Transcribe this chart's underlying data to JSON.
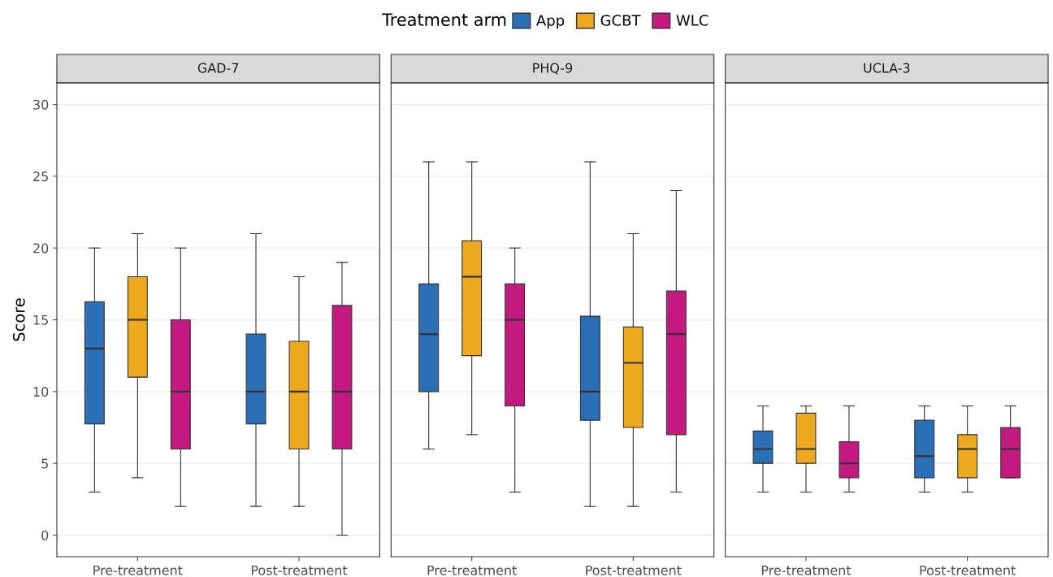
{
  "chart_data": [
    {
      "type": "box",
      "title": "GAD-7",
      "ylabel": "Score",
      "legend_title": "Treatment arm",
      "legend": "top",
      "grid": "y",
      "categories": [
        "Pre-treatment",
        "Post-treatment"
      ],
      "ylim": [
        -1.5,
        31.5
      ],
      "yticks": [
        0,
        5,
        10,
        15,
        20,
        25,
        30
      ],
      "series": [
        {
          "name": "App",
          "color": "#2b6fb6",
          "boxes": [
            {
              "low": 3,
              "q1": 7.75,
              "median": 13,
              "q3": 16.25,
              "high": 20
            },
            {
              "low": 2,
              "q1": 7.75,
              "median": 10,
              "q3": 14,
              "high": 21
            }
          ]
        },
        {
          "name": "GCBT",
          "color": "#eeaa1f",
          "boxes": [
            {
              "low": 4,
              "q1": 11,
              "median": 15,
              "q3": 18,
              "high": 21
            },
            {
              "low": 2,
              "q1": 6,
              "median": 10,
              "q3": 13.5,
              "high": 18
            }
          ]
        },
        {
          "name": "WLC",
          "color": "#c41a80",
          "boxes": [
            {
              "low": 2,
              "q1": 6,
              "median": 10,
              "q3": 15,
              "high": 20
            },
            {
              "low": 0,
              "q1": 6,
              "median": 10,
              "q3": 16,
              "high": 19
            }
          ]
        }
      ]
    },
    {
      "type": "box",
      "title": "PHQ-9",
      "grid": "y",
      "tick_labels": "x",
      "categories": [
        "Pre-treatment",
        "Post-treatment"
      ],
      "ylim": [
        -1.5,
        31.5
      ],
      "series": [
        {
          "name": "App",
          "color": "#2b6fb6",
          "boxes": [
            {
              "low": 6,
              "q1": 10,
              "median": 14,
              "q3": 17.5,
              "high": 26
            },
            {
              "low": 2,
              "q1": 8,
              "median": 10,
              "q3": 15.25,
              "high": 26
            }
          ]
        },
        {
          "name": "GCBT",
          "color": "#eeaa1f",
          "boxes": [
            {
              "low": 7,
              "q1": 12.5,
              "median": 18,
              "q3": 20.5,
              "high": 26
            },
            {
              "low": 2,
              "q1": 7.5,
              "median": 12,
              "q3": 14.5,
              "high": 21
            }
          ]
        },
        {
          "name": "WLC",
          "color": "#c41a80",
          "boxes": [
            {
              "low": 3,
              "q1": 9,
              "median": 15,
              "q3": 17.5,
              "high": 20
            },
            {
              "low": 3,
              "q1": 7,
              "median": 14,
              "q3": 17,
              "high": 24
            }
          ]
        }
      ]
    },
    {
      "type": "box",
      "title": "UCLA-3",
      "grid": "y",
      "tick_labels": "x",
      "categories": [
        "Pre-treatment",
        "Post-treatment"
      ],
      "ylim": [
        -1.5,
        31.5
      ],
      "series": [
        {
          "name": "App",
          "color": "#2b6fb6",
          "boxes": [
            {
              "low": 3,
              "q1": 5,
              "median": 6,
              "q3": 7.25,
              "high": 9
            },
            {
              "low": 3,
              "q1": 4,
              "median": 5.5,
              "q3": 8,
              "high": 9
            }
          ]
        },
        {
          "name": "GCBT",
          "color": "#eeaa1f",
          "boxes": [
            {
              "low": 3,
              "q1": 5,
              "median": 6,
              "q3": 8.5,
              "high": 9
            },
            {
              "low": 3,
              "q1": 4,
              "median": 6,
              "q3": 7,
              "high": 9
            }
          ]
        },
        {
          "name": "WLC",
          "color": "#c41a80",
          "boxes": [
            {
              "low": 3,
              "q1": 4,
              "median": 5,
              "q3": 6.5,
              "high": 9
            },
            {
              "low": 4,
              "q1": 4,
              "median": 6,
              "q3": 7.5,
              "high": 9
            }
          ]
        }
      ]
    }
  ]
}
